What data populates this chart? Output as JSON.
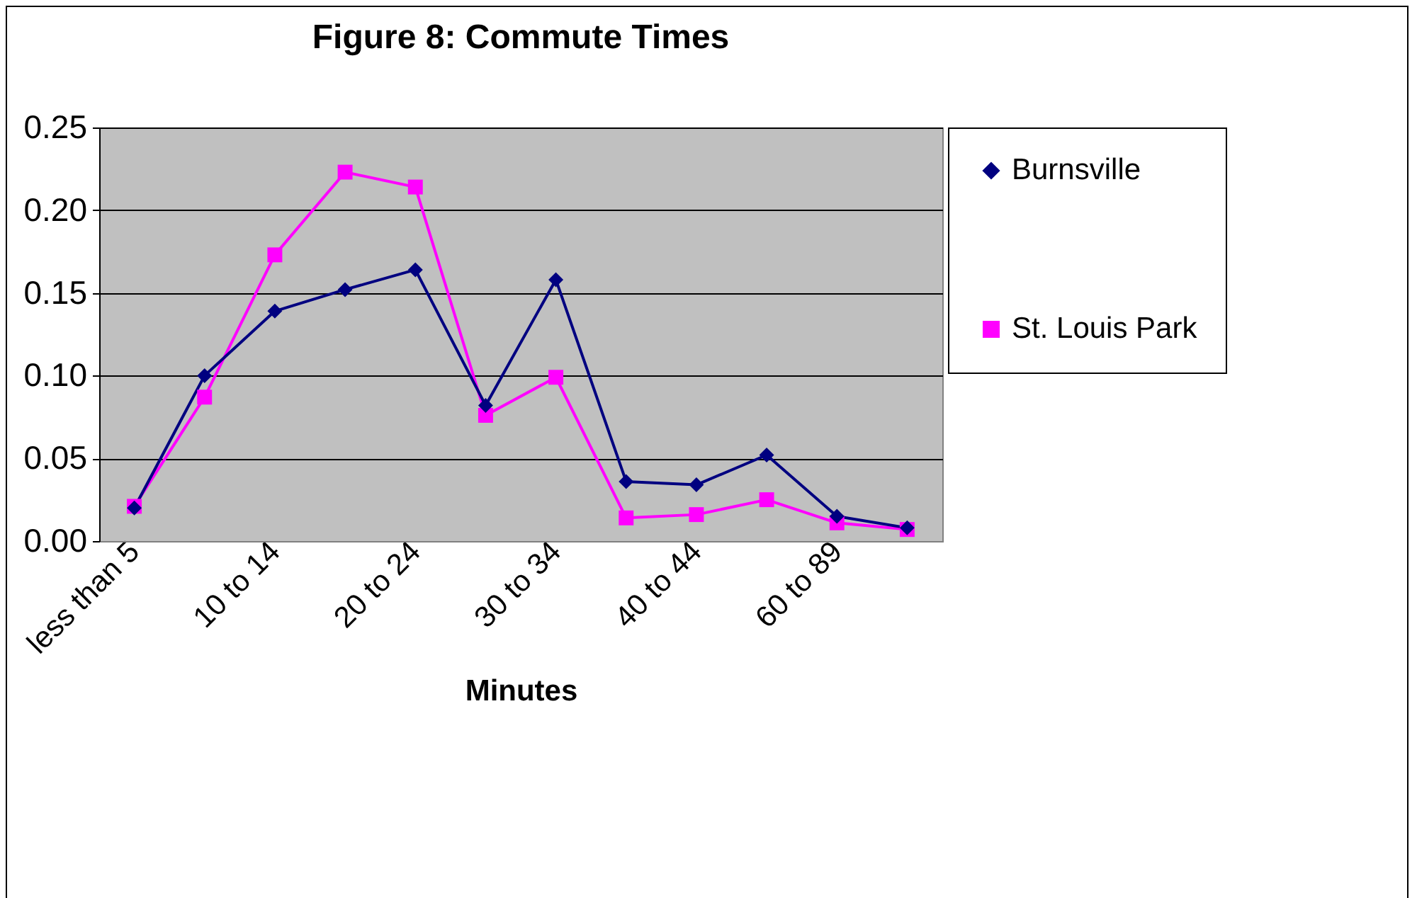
{
  "chart_data": {
    "type": "line",
    "title": "Figure 8: Commute Times",
    "xlabel": "Minutes",
    "categories": [
      "less than 5",
      null,
      "10 to 14",
      null,
      "20 to 24",
      null,
      "30 to 34",
      null,
      "40 to 44",
      null,
      "60 to 89",
      null
    ],
    "series": [
      {
        "name": "Burnsville",
        "color": "#000080",
        "marker": "diamond",
        "values": [
          0.02,
          0.1,
          0.139,
          0.152,
          0.164,
          0.082,
          0.158,
          0.036,
          0.034,
          0.052,
          0.015,
          0.008
        ]
      },
      {
        "name": "St. Louis Park",
        "color": "#ff00ff",
        "marker": "square",
        "values": [
          0.021,
          0.087,
          0.173,
          0.223,
          0.214,
          0.076,
          0.099,
          0.014,
          0.016,
          0.025,
          0.011,
          0.007
        ]
      }
    ],
    "ylim": [
      0,
      0.25
    ],
    "yticks": [
      {
        "value": 0,
        "label": "0.00"
      },
      0.05,
      {
        "value": 0.1,
        "label": "0.10"
      },
      0.15,
      {
        "value": 0.2,
        "label": "0.20"
      },
      0.25
    ],
    "grid": "y",
    "legend": "right"
  }
}
